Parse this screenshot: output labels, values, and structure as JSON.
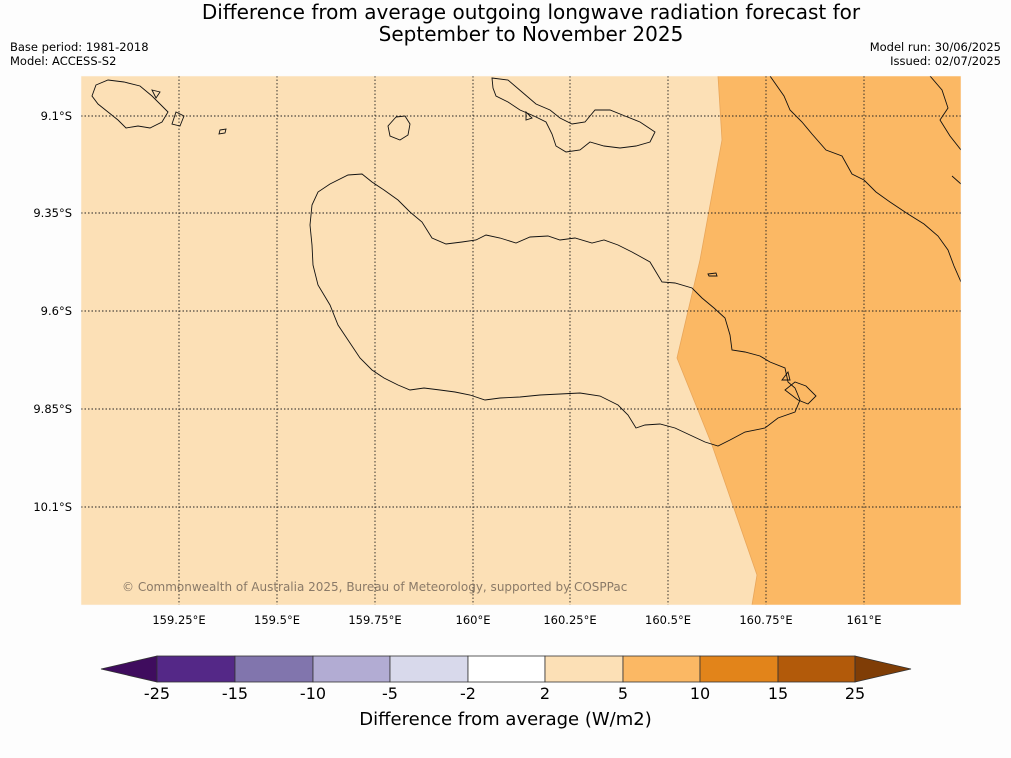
{
  "title": {
    "line1": "Difference from average outgoing longwave radiation forecast for",
    "line2": "September to November 2025"
  },
  "meta": {
    "base_period": "Base period: 1981-2018",
    "model": "Model: ACCESS-S2",
    "model_run": "Model run: 30/06/2025",
    "issued": "Issued: 02/07/2025"
  },
  "map": {
    "lat_labels": [
      "9.1°S",
      "9.35°S",
      "9.6°S",
      "9.85°S",
      "10.1°S"
    ],
    "lon_labels": [
      "159.25°E",
      "159.5°E",
      "159.75°E",
      "160°E",
      "160.25°E",
      "160.5°E",
      "160.75°E",
      "161°E"
    ],
    "copyright": "© Commonwealth of Australia 2025, Bureau of Meteorology, supported by COSPPac",
    "background_color": "#fce0b6",
    "anomaly_region_color": "#fbb864",
    "anomaly_region_class": "5 to 10"
  },
  "colorbar": {
    "label": "Difference from average (W/m2)",
    "ticks": [
      "-25",
      "-15",
      "-10",
      "-5",
      "-2",
      "2",
      "5",
      "10",
      "15",
      "25"
    ],
    "colors": [
      "#3f0c5e",
      "#542887",
      "#8175ad",
      "#b2acd3",
      "#d8d9eb",
      "#ffffff",
      "#fce0b6",
      "#fbb864",
      "#e2841a",
      "#b25a0a",
      "#7f3d06"
    ]
  }
}
